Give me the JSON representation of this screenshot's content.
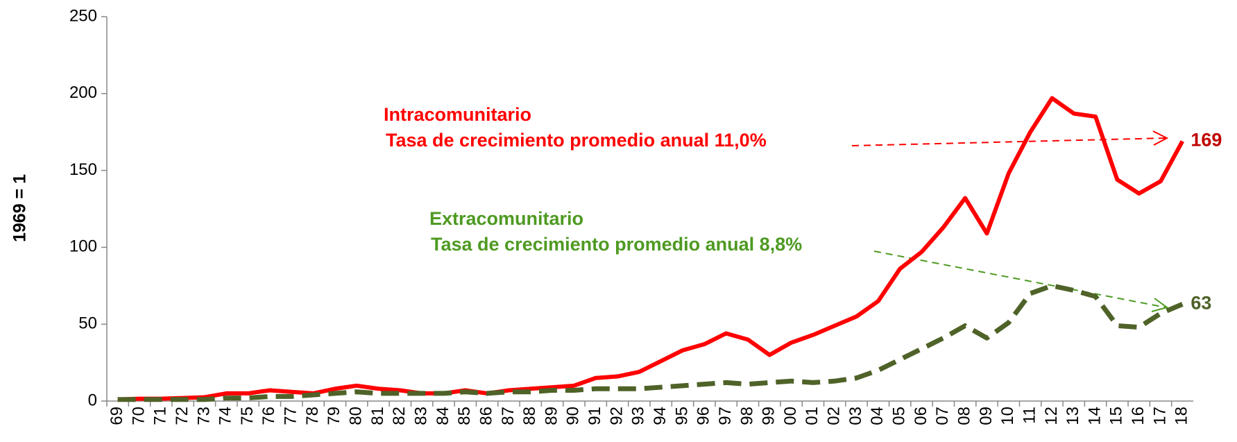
{
  "chart_data": {
    "type": "line",
    "y_label": "1969 = 1",
    "categories": [
      "69",
      "70",
      "71",
      "72",
      "73",
      "74",
      "75",
      "76",
      "77",
      "78",
      "79",
      "80",
      "81",
      "82",
      "83",
      "84",
      "85",
      "86",
      "87",
      "88",
      "89",
      "90",
      "91",
      "92",
      "93",
      "94",
      "95",
      "96",
      "97",
      "98",
      "99",
      "00",
      "01",
      "02",
      "03",
      "04",
      "05",
      "06",
      "07",
      "08",
      "09",
      "10",
      "11",
      "12",
      "13",
      "14",
      "15",
      "16",
      "17",
      "18"
    ],
    "series": [
      {
        "name": "Intracomunitario",
        "color": "#ff0000",
        "dashed": false,
        "values": [
          1,
          1.5,
          1.5,
          2,
          2.5,
          5,
          5,
          7,
          6,
          5,
          8,
          10,
          8,
          7,
          5,
          5,
          7,
          5,
          7,
          8,
          9,
          10,
          15,
          16,
          19,
          26,
          33,
          37,
          44,
          40,
          30,
          38,
          43,
          49,
          55,
          65,
          86,
          97,
          113,
          132,
          109,
          148,
          175,
          197,
          187,
          185,
          144,
          135,
          143,
          169
        ]
      },
      {
        "name": "Extracomunitario",
        "color": "#4f6228",
        "dashed": true,
        "values": [
          1,
          1,
          1,
          1,
          1,
          2,
          2,
          3,
          3,
          4,
          5,
          6,
          5,
          5,
          5,
          5,
          6,
          5,
          6,
          6,
          7,
          7,
          8,
          8,
          8,
          9,
          10,
          11,
          12,
          11,
          12,
          13,
          12,
          13,
          15,
          20,
          27,
          34,
          41,
          49,
          41,
          51,
          70,
          75,
          72,
          68,
          49,
          48,
          57,
          63
        ]
      }
    ],
    "annotations": [
      "Tasa de crecimiento promedio anual  11,0%",
      "Tasa de crecimiento promedio anual  8,8%"
    ],
    "ylim": [
      0,
      250
    ],
    "yticks": [
      0,
      50,
      100,
      150,
      200,
      250
    ]
  }
}
